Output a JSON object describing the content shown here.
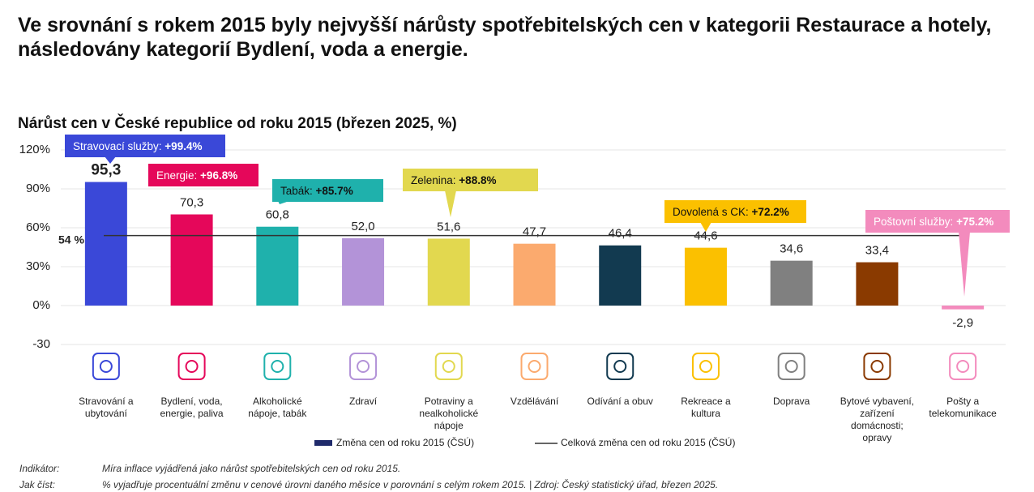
{
  "chart_data": {
    "type": "bar",
    "title": "Ve srovnání s rokem 2015 byly nejvyšší nárůsty spotřebitelských cen v kategorii Restaurace a hotely, následovány kategorií Bydlení, voda a energie.",
    "subtitle": "Nárůst cen v České republice od roku 2015 (březen 2025, %)",
    "categories": [
      "Stravování a ubytování",
      "Bydlení, voda, energie, paliva",
      "Alkoholické nápoje, tabák",
      "Zdraví",
      "Potraviny a nealkoholické nápoje",
      "Vzdělávání",
      "Odívání a obuv",
      "Rekreace a kultura",
      "Doprava",
      "Bytové vybavení, zařízení domácnosti; opravy",
      "Pošty a telekomunikace"
    ],
    "series": [
      {
        "name": "Změna cen od roku 2015 (ČSÚ)",
        "color": "#1f2a6b",
        "values": [
          95.3,
          70.3,
          60.8,
          52.0,
          51.6,
          47.7,
          46.4,
          44.6,
          34.6,
          33.4,
          -2.9
        ],
        "value_labels": [
          "95,3",
          "70,3",
          "60,8",
          "52,0",
          "51,6",
          "47,7",
          "46,4",
          "44,6",
          "34,6",
          "33,4",
          "-2,9"
        ],
        "colors": [
          "#3a48d8",
          "#e5075a",
          "#1fb1ac",
          "#b393d8",
          "#e2d84f",
          "#fbaa6e",
          "#123a50",
          "#fbc000",
          "#808080",
          "#8a3a00",
          "#f38bbd"
        ]
      }
    ],
    "reference_line": {
      "name": "Celková změna cen od roku 2015 (ČSÚ)",
      "value": 54,
      "label": "54 %",
      "color": "#333333"
    },
    "ylim": [
      -30,
      120
    ],
    "yticks": [
      {
        "value": -30,
        "label": "-30"
      },
      {
        "value": 0,
        "label": "0%"
      },
      {
        "value": 30,
        "label": "30%"
      },
      {
        "value": 60,
        "label": "60%"
      },
      {
        "value": 90,
        "label": "90%"
      },
      {
        "value": 120,
        "label": "120%"
      }
    ],
    "grid": true,
    "annotations": [
      {
        "category": 0,
        "text": "Stravovací služby: ",
        "value": "+99.4%",
        "color": "#3a48d8",
        "text_color": "#ffffff"
      },
      {
        "category": 1,
        "text": "Energie: ",
        "value": "+96.8%",
        "color": "#e5075a",
        "text_color": "#ffffff"
      },
      {
        "category": 2,
        "text": "Tabák: ",
        "value": "+85.7%",
        "color": "#1fb1ac",
        "text_color": "#111111"
      },
      {
        "category": 4,
        "text": "Zelenina: ",
        "value": "+88.8%",
        "color": "#e2d84f",
        "text_color": "#111111"
      },
      {
        "category": 7,
        "text": "Dovolená s CK: ",
        "value": "+72.2%",
        "color": "#fbc000",
        "text_color": "#111111"
      },
      {
        "category": 10,
        "text": "Poštovní služby: ",
        "value": "+75.2%",
        "color": "#f38bbd",
        "text_color": "#ffffff"
      }
    ],
    "notes": [
      {
        "label": "Indikátor:",
        "text": "Míra inflace vyjádřená jako nárůst spotřebitelských cen od roku 2015."
      },
      {
        "label": "Jak číst:",
        "text": "% vyjadřuje procentuální změnu v cenové úrovni daného měsíce v porovnání s celým rokem 2015. | Zdroj: Český statistický úřad, březen 2025."
      }
    ]
  }
}
